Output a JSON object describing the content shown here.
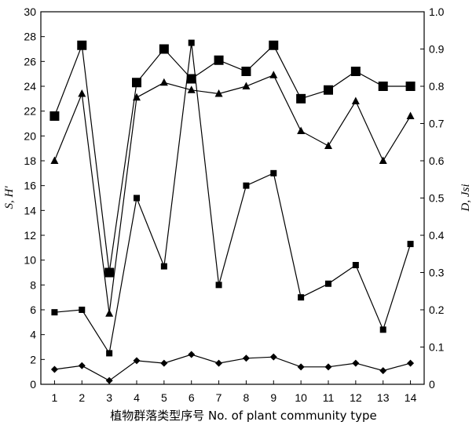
{
  "chart_data": {
    "type": "line",
    "xlabel": "植物群落类型序号  No. of plant community type",
    "ylabel_left": "S, H'",
    "ylabel_right": "D, Jsi",
    "x": [
      1,
      2,
      3,
      4,
      5,
      6,
      7,
      8,
      9,
      10,
      11,
      12,
      13,
      14
    ],
    "xlim": [
      0.5,
      14.5
    ],
    "ylim_left": [
      0,
      30
    ],
    "ylim_right": [
      0,
      1.0
    ],
    "yticks_left": [
      0,
      2,
      4,
      6,
      8,
      10,
      12,
      14,
      16,
      18,
      20,
      22,
      24,
      26,
      28,
      30
    ],
    "yticks_right": [
      "0",
      "0.1",
      "0.2",
      "0.3",
      "0.4",
      "0.5",
      "0.6",
      "0.7",
      "0.8",
      "0.9",
      "1.0"
    ],
    "grid": false,
    "legend": "none",
    "series": [
      {
        "axis": "left",
        "marker": "large-square",
        "values": [
          21.6,
          27.3,
          9.0,
          24.3,
          27.0,
          24.6,
          26.1,
          25.2,
          27.3,
          23.0,
          23.7,
          25.2,
          24.0,
          24.0
        ]
      },
      {
        "axis": "right",
        "marker": "triangle",
        "values": [
          0.6,
          0.78,
          0.19,
          0.77,
          0.81,
          0.79,
          0.78,
          0.8,
          0.83,
          0.68,
          0.64,
          0.76,
          0.6,
          0.72
        ]
      },
      {
        "axis": "left",
        "marker": "small-square",
        "values": [
          5.8,
          6.0,
          2.5,
          15.0,
          9.5,
          27.5,
          8.0,
          16.0,
          17.0,
          7.0,
          8.1,
          9.6,
          4.4,
          11.3
        ]
      },
      {
        "axis": "left",
        "marker": "diamond",
        "values": [
          1.2,
          1.5,
          0.3,
          1.9,
          1.7,
          2.4,
          1.7,
          2.1,
          2.2,
          1.4,
          1.4,
          1.7,
          1.1,
          1.7
        ]
      }
    ]
  }
}
